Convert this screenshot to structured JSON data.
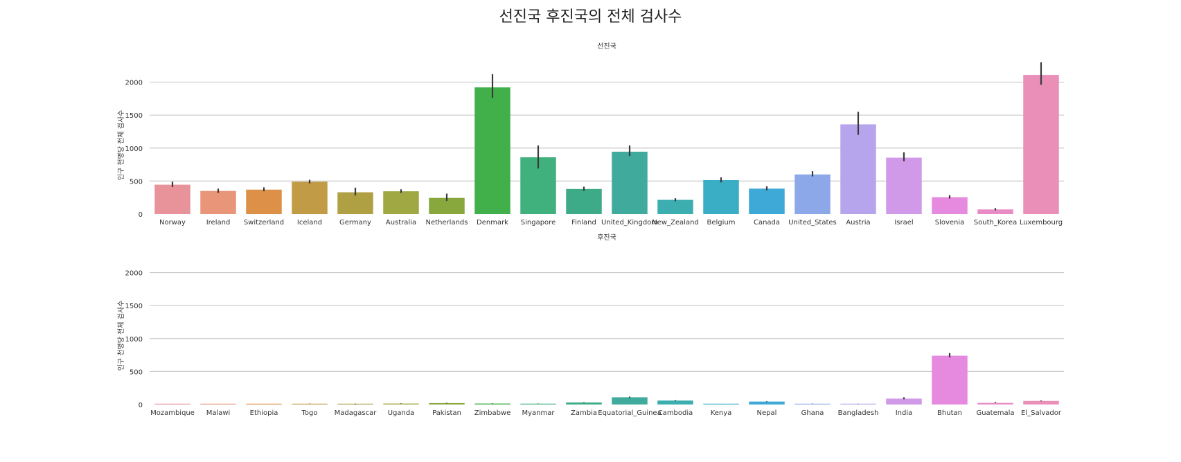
{
  "page_title": "선진국 후진국의 전체 검사수",
  "chart_data": [
    {
      "type": "bar",
      "title": "선진국",
      "xlabel": "",
      "ylabel": "인구 천명당 전체 검사수",
      "ylim": [
        0,
        2300
      ],
      "yticks": [
        0,
        500,
        1000,
        1500,
        2000
      ],
      "grid": "horizontal",
      "categories": [
        "Norway",
        "Ireland",
        "Switzerland",
        "Iceland",
        "Germany",
        "Australia",
        "Netherlands",
        "Denmark",
        "Singapore",
        "Finland",
        "United_Kingdom",
        "New_Zealand",
        "Belgium",
        "Canada",
        "United_States",
        "Austria",
        "Israel",
        "Slovenia",
        "South_Korea",
        "Luxembourg"
      ],
      "values": [
        445,
        350,
        370,
        490,
        330,
        345,
        245,
        1920,
        860,
        380,
        945,
        215,
        515,
        385,
        600,
        1360,
        855,
        255,
        70,
        2110
      ],
      "error_low": [
        410,
        320,
        345,
        465,
        280,
        320,
        200,
        1760,
        690,
        350,
        880,
        195,
        480,
        360,
        570,
        1200,
        800,
        235,
        55,
        1960
      ],
      "error_high": [
        490,
        385,
        405,
        520,
        400,
        375,
        310,
        2120,
        1040,
        415,
        1040,
        240,
        555,
        420,
        650,
        1550,
        935,
        285,
        90,
        2300
      ],
      "colors": [
        "#e8929a",
        "#e8957a",
        "#dc9048",
        "#c29b46",
        "#afa044",
        "#a0a844",
        "#88a83e",
        "#42b04a",
        "#40b07c",
        "#3daa88",
        "#40ab9c",
        "#3caeb0",
        "#3aaec4",
        "#3ea8d6",
        "#8ca8e8",
        "#b6a4ec",
        "#d19ae8",
        "#e68ae0",
        "#e98cc6",
        "#e98fb8"
      ]
    },
    {
      "type": "bar",
      "title": "후진국",
      "xlabel": "",
      "ylabel": "인구 천명당 전체 검사수",
      "ylim": [
        0,
        2300
      ],
      "yticks": [
        0,
        500,
        1000,
        1500,
        2000
      ],
      "grid": "horizontal",
      "categories": [
        "Mozambique",
        "Malawi",
        "Ethiopia",
        "Togo",
        "Madagascar",
        "Uganda",
        "Pakistan",
        "Zimbabwe",
        "Myanmar",
        "Zambia",
        "Equatorial_Guinea",
        "Cambodia",
        "Kenya",
        "Nepal",
        "Ghana",
        "Bangladesh",
        "India",
        "Bhutan",
        "Guatemala",
        "El_Salvador"
      ],
      "values": [
        2,
        2,
        3,
        12,
        4,
        15,
        22,
        15,
        13,
        30,
        110,
        60,
        3,
        45,
        12,
        10,
        90,
        740,
        25,
        55
      ],
      "error_low": [
        1,
        1,
        2,
        10,
        1,
        12,
        18,
        12,
        11,
        26,
        100,
        55,
        2,
        40,
        10,
        8,
        80,
        715,
        20,
        50
      ],
      "error_high": [
        3,
        3,
        4,
        14,
        12,
        18,
        26,
        18,
        15,
        34,
        120,
        65,
        4,
        50,
        14,
        12,
        110,
        780,
        35,
        60
      ],
      "colors": [
        "#e8929a",
        "#e8957a",
        "#dc9048",
        "#c29b46",
        "#afa044",
        "#a0a844",
        "#88a83e",
        "#42b04a",
        "#40b07c",
        "#3daa88",
        "#40ab9c",
        "#3caeb0",
        "#3aaec4",
        "#3ea8d6",
        "#8ca8e8",
        "#b6a4ec",
        "#d19ae8",
        "#e68ae0",
        "#e98cc6",
        "#e98fb8"
      ]
    }
  ]
}
